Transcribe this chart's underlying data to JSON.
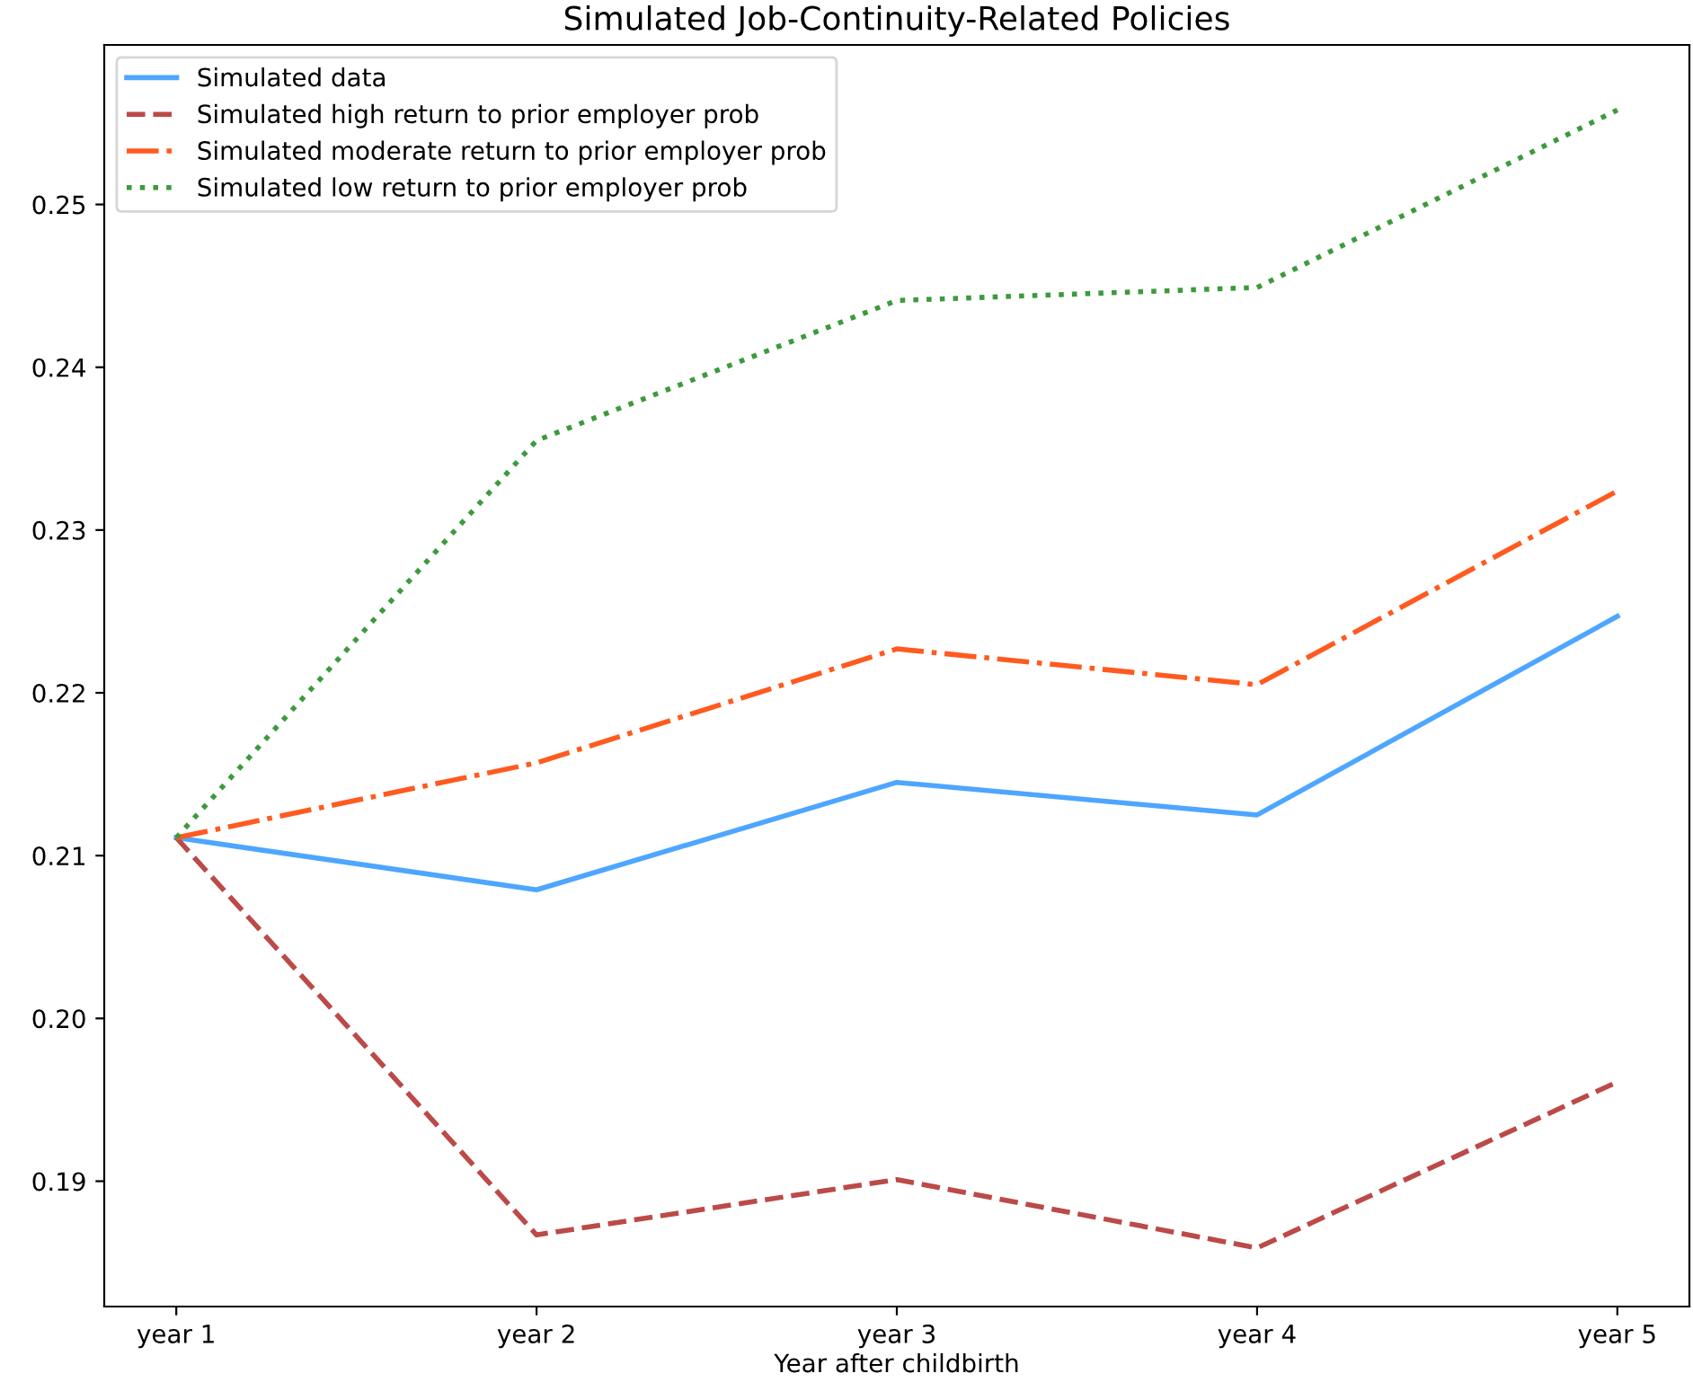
{
  "chart_data": {
    "type": "line",
    "title": "Simulated Job-Continuity-Related Policies",
    "xlabel": "Year after childbirth",
    "categories": [
      "year 1",
      "year 2",
      "year 3",
      "year 4",
      "year 5"
    ],
    "series": [
      {
        "name": "Simulated data",
        "color": "#4da6ff",
        "line_style": "solid",
        "values": [
          0.2111,
          0.2079,
          0.2145,
          0.2125,
          0.2247
        ]
      },
      {
        "name": "Simulated high return to prior employer prob",
        "color": "#bb4a48",
        "line_style": "dashed",
        "values": [
          0.2111,
          0.1867,
          0.1901,
          0.1859,
          0.1961
        ]
      },
      {
        "name": "Simulated moderate return to prior employer prob",
        "color": "#ff5a1f",
        "line_style": "dashdot",
        "values": [
          0.2111,
          0.2157,
          0.2227,
          0.2205,
          0.2324
        ]
      },
      {
        "name": "Simulated low return to prior employer prob",
        "color": "#3d9a3d",
        "line_style": "dotted",
        "values": [
          0.2111,
          0.2355,
          0.2441,
          0.2449,
          0.2558
        ]
      }
    ],
    "ylim": [
      0.1823,
      0.2598
    ],
    "yticks": [
      0.19,
      {
        "value": 0.2,
        "label": "0.20"
      },
      0.21,
      0.22,
      0.23,
      0.24,
      0.25
    ],
    "grid": false,
    "legend": "top left",
    "marker": "none"
  }
}
